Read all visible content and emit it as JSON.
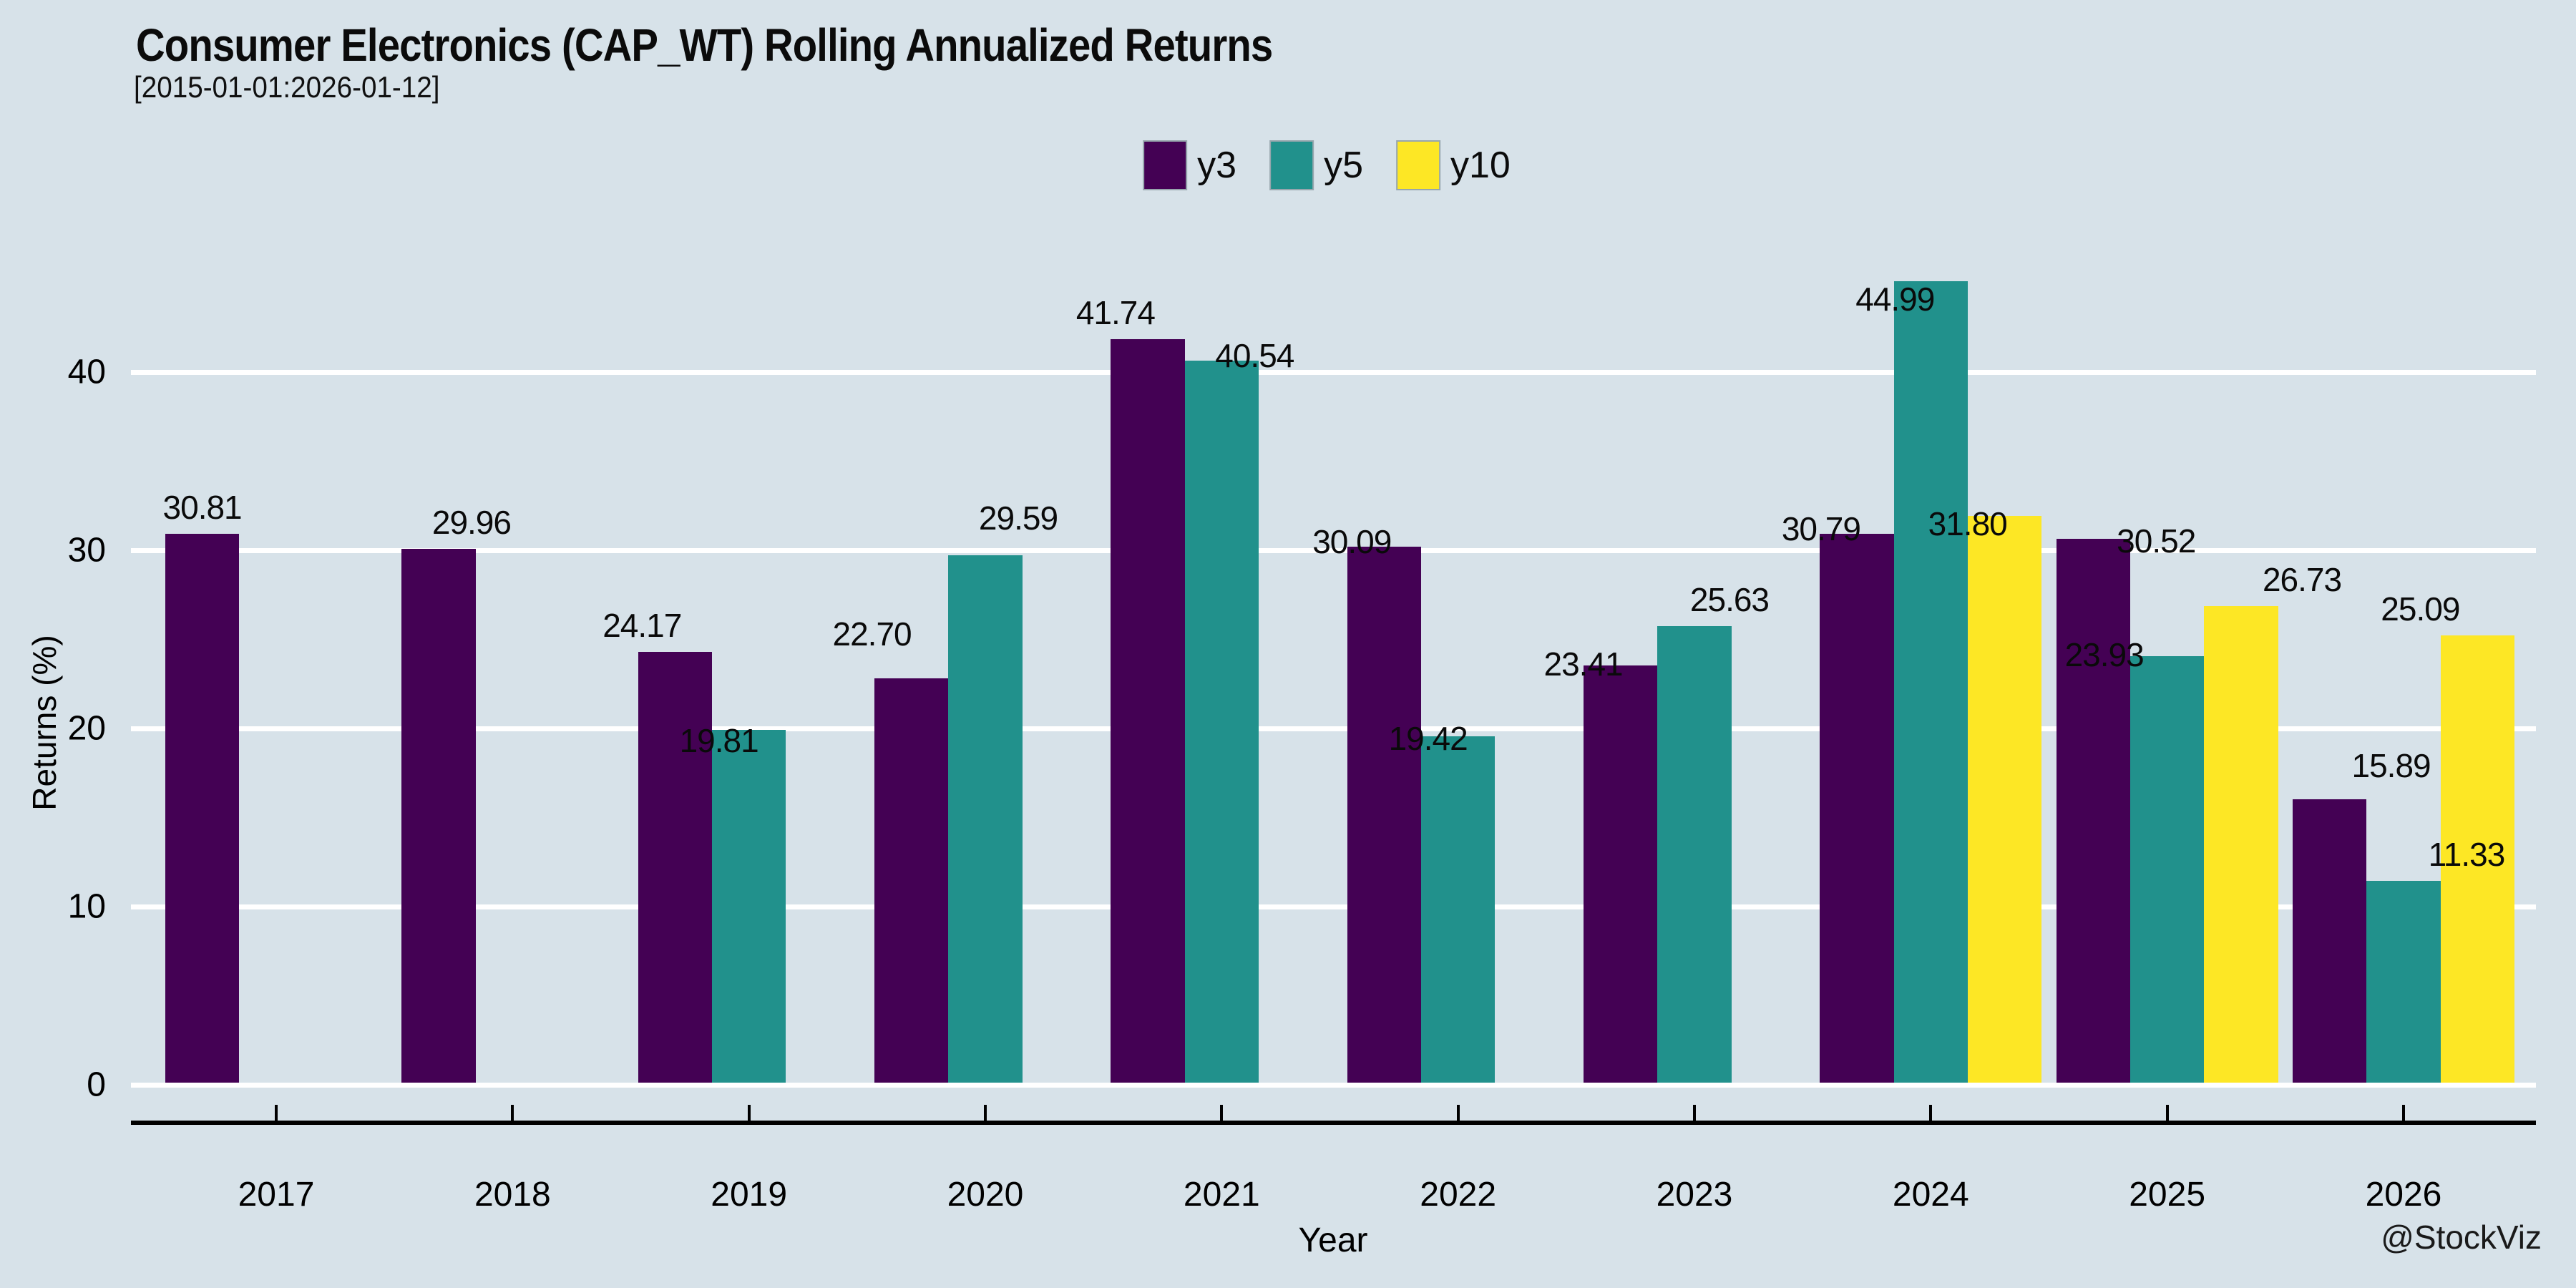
{
  "header": {
    "title": "Consumer Electronics (CAP_WT) Rolling Annualized Returns",
    "subtitle": "[2015-01-01:2026-01-12]"
  },
  "watermark": "@StockViz",
  "chart_data": {
    "type": "bar",
    "title": "Consumer Electronics (CAP_WT) Rolling Annualized Returns",
    "subtitle": "[2015-01-01:2026-01-12]",
    "xlabel": "Year",
    "ylabel": "Returns (%)",
    "categories": [
      "2017",
      "2018",
      "2019",
      "2020",
      "2021",
      "2022",
      "2023",
      "2024",
      "2025",
      "2026"
    ],
    "yticks": [
      0,
      10,
      20,
      30,
      40
    ],
    "ylim": [
      0,
      45.5
    ],
    "grid": "horizontal-white",
    "legend_position": "top-center",
    "background_color": "#d7e2e9",
    "gridline_color": "#ffffff",
    "bar_labels_shown": true,
    "series": [
      {
        "name": "y3",
        "color": "#440154",
        "values": [
          30.81,
          29.96,
          24.17,
          22.7,
          41.74,
          30.09,
          23.41,
          30.79,
          30.52,
          15.89
        ],
        "label_offsets": [
          [
            0,
            0
          ],
          [
            46,
            0
          ],
          [
            -46,
            0
          ],
          [
            -55,
            -25
          ],
          [
            -45,
            0
          ],
          [
            -45,
            30
          ],
          [
            -52,
            35
          ],
          [
            -50,
            30
          ],
          [
            88,
            40
          ],
          [
            86,
            -10
          ]
        ]
      },
      {
        "name": "y5",
        "color": "#21918c",
        "values": [
          null,
          null,
          19.81,
          29.59,
          40.54,
          19.42,
          25.63,
          44.99,
          23.93,
          11.33
        ],
        "label_offsets": [
          null,
          null,
          [
            -42,
            52
          ],
          [
            46,
            -15
          ],
          [
            46,
            30
          ],
          [
            -42,
            40
          ],
          [
            49,
            0
          ],
          [
            -50,
            62
          ],
          [
            -88,
            35
          ],
          [
            88,
            0
          ]
        ]
      },
      {
        "name": "y10",
        "color": "#fde725",
        "values": [
          null,
          null,
          null,
          null,
          null,
          null,
          null,
          31.8,
          26.73,
          25.09
        ],
        "label_offsets": [
          null,
          null,
          null,
          null,
          null,
          null,
          null,
          [
            -52,
            48
          ],
          [
            85,
            0
          ],
          [
            -80,
            0
          ]
        ]
      }
    ]
  }
}
